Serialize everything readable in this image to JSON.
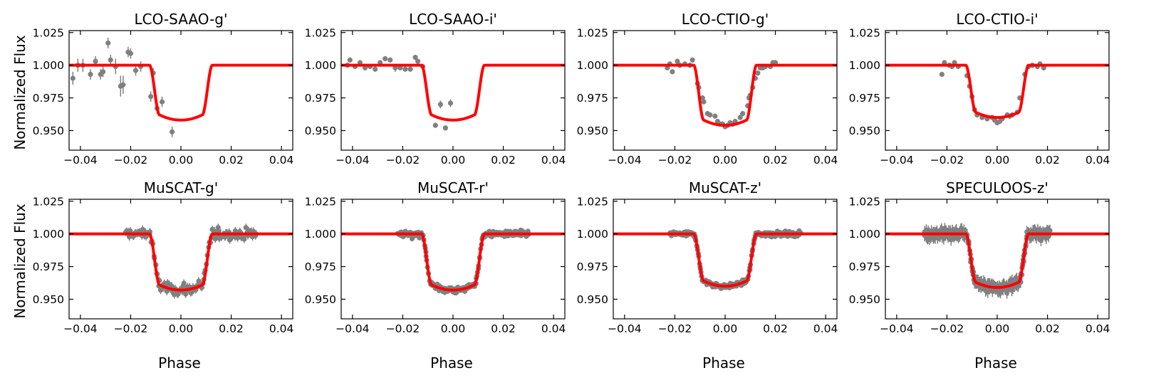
{
  "figure": {
    "xlabel": "Phase",
    "ylabel": "Normalized Flux",
    "x_ticks": [
      -0.04,
      -0.02,
      0.0,
      0.02,
      0.04
    ],
    "x_tick_labels": [
      "−0.04",
      "−0.02",
      "0.00",
      "0.02",
      "0.04"
    ],
    "y_ticks": [
      0.95,
      0.975,
      1.0,
      1.025
    ],
    "y_tick_labels": [
      "0.950",
      "0.975",
      "1.000",
      "1.025"
    ],
    "xlim": [
      -0.0445,
      0.0445
    ],
    "ylim": [
      0.935,
      1.0265
    ],
    "model_color": "#ff0000",
    "data_color": "#808080"
  },
  "chart_data": [
    {
      "type": "scatter",
      "title": "LCO-SAAO-g'",
      "model_depth": 0.958,
      "points": [
        [
          -0.043,
          0.99,
          0.005
        ],
        [
          -0.041,
          1.0,
          0.005
        ],
        [
          -0.039,
          1.0,
          0.005
        ],
        [
          -0.036,
          0.993,
          0.004
        ],
        [
          -0.034,
          1.003,
          0.004
        ],
        [
          -0.032,
          0.993,
          0.004
        ],
        [
          -0.031,
          0.995,
          0.004
        ],
        [
          -0.029,
          1.017,
          0.004
        ],
        [
          -0.028,
          1.004,
          0.004
        ],
        [
          -0.026,
          0.999,
          0.006
        ],
        [
          -0.024,
          0.984,
          0.008
        ],
        [
          -0.023,
          0.985,
          0.007
        ],
        [
          -0.021,
          1.01,
          0.004
        ],
        [
          -0.02,
          1.009,
          0.004
        ],
        [
          -0.018,
          0.996,
          0.004
        ],
        [
          -0.016,
          0.999,
          0.004
        ],
        [
          -0.012,
          0.976,
          0.004
        ],
        [
          -0.011,
          0.994,
          0.004
        ],
        [
          -0.0095,
          0.967,
          0.004
        ],
        [
          -0.0075,
          0.972,
          0.004
        ],
        [
          -0.0035,
          0.949,
          0.004
        ]
      ]
    },
    {
      "type": "scatter",
      "title": "LCO-SAAO-i'",
      "model_depth": 0.958,
      "points": [
        [
          -0.042,
          1.0,
          0.002
        ],
        [
          -0.041,
          1.004,
          0.002
        ],
        [
          -0.039,
          0.999,
          0.002
        ],
        [
          -0.037,
          1.002,
          0.002
        ],
        [
          -0.035,
          0.998,
          0.002
        ],
        [
          -0.033,
          0.999,
          0.002
        ],
        [
          -0.031,
          0.997,
          0.002
        ],
        [
          -0.029,
          1.002,
          0.002
        ],
        [
          -0.027,
          1.005,
          0.002
        ],
        [
          -0.025,
          1.004,
          0.002
        ],
        [
          -0.023,
          0.998,
          0.003
        ],
        [
          -0.021,
          0.998,
          0.002
        ],
        [
          -0.019,
          0.997,
          0.002
        ],
        [
          -0.017,
          0.997,
          0.002
        ],
        [
          -0.015,
          1.006,
          0.002
        ],
        [
          -0.014,
          1.003,
          0.002
        ],
        [
          -0.012,
          0.999,
          0.002
        ],
        [
          -0.007,
          0.954,
          0.002
        ],
        [
          -0.005,
          0.97,
          0.003
        ],
        [
          -0.003,
          0.952,
          0.002
        ],
        [
          -0.001,
          0.971,
          0.003
        ]
      ]
    },
    {
      "type": "scatter",
      "title": "LCO-CTIO-g'",
      "model_depth": 0.954,
      "points": [
        [
          -0.023,
          0.998,
          0.002
        ],
        [
          -0.022,
          1.001,
          0.002
        ],
        [
          -0.021,
          0.995,
          0.002
        ],
        [
          -0.019,
          1.003,
          0.002
        ],
        [
          -0.018,
          1.0,
          0.002
        ],
        [
          -0.016,
          1.001,
          0.002
        ],
        [
          -0.014,
          1.0,
          0.002
        ],
        [
          -0.013,
          1.004,
          0.002
        ],
        [
          -0.011,
          0.986,
          0.002
        ],
        [
          -0.0105,
          0.983,
          0.002
        ],
        [
          -0.009,
          0.975,
          0.002
        ],
        [
          -0.0085,
          0.972,
          0.002
        ],
        [
          -0.007,
          0.963,
          0.002
        ],
        [
          -0.006,
          0.962,
          0.002
        ],
        [
          -0.004,
          0.961,
          0.002
        ],
        [
          -0.003,
          0.957,
          0.002
        ],
        [
          -0.002,
          0.955,
          0.002
        ],
        [
          -0.001,
          0.955,
          0.002
        ],
        [
          0.0,
          0.953,
          0.002
        ],
        [
          0.001,
          0.954,
          0.002
        ],
        [
          0.002,
          0.956,
          0.002
        ],
        [
          0.003,
          0.955,
          0.002
        ],
        [
          0.004,
          0.957,
          0.002
        ],
        [
          0.006,
          0.96,
          0.002
        ],
        [
          0.007,
          0.963,
          0.002
        ],
        [
          0.009,
          0.969,
          0.002
        ],
        [
          0.0095,
          0.975,
          0.002
        ],
        [
          0.01,
          0.977,
          0.002
        ],
        [
          0.011,
          0.983,
          0.002
        ],
        [
          0.012,
          0.99,
          0.002
        ],
        [
          0.013,
          0.994,
          0.002
        ],
        [
          0.014,
          0.998,
          0.002
        ],
        [
          0.015,
          0.998,
          0.002
        ],
        [
          0.016,
          0.999,
          0.002
        ],
        [
          0.018,
          0.999,
          0.002
        ],
        [
          0.019,
          1.002,
          0.002
        ],
        [
          0.02,
          1.002,
          0.002
        ]
      ]
    },
    {
      "type": "scatter",
      "title": "LCO-CTIO-i'",
      "model_depth": 0.96,
      "points": [
        [
          -0.022,
          0.993,
          0.002
        ],
        [
          -0.021,
          1.002,
          0.002
        ],
        [
          -0.019,
          1.0,
          0.002
        ],
        [
          -0.018,
          0.999,
          0.002
        ],
        [
          -0.017,
          1.002,
          0.002
        ],
        [
          -0.0155,
          0.999,
          0.002
        ],
        [
          -0.012,
          0.992,
          0.002
        ],
        [
          -0.011,
          0.984,
          0.002
        ],
        [
          -0.01,
          0.976,
          0.002
        ],
        [
          -0.009,
          0.966,
          0.002
        ],
        [
          -0.008,
          0.962,
          0.002
        ],
        [
          -0.006,
          0.96,
          0.002
        ],
        [
          -0.004,
          0.959,
          0.002
        ],
        [
          -0.002,
          0.96,
          0.002
        ],
        [
          -0.001,
          0.958,
          0.002
        ],
        [
          0.0,
          0.956,
          0.002
        ],
        [
          0.001,
          0.957,
          0.002
        ],
        [
          0.002,
          0.959,
          0.002
        ],
        [
          0.004,
          0.962,
          0.002
        ],
        [
          0.005,
          0.961,
          0.002
        ],
        [
          0.006,
          0.962,
          0.002
        ],
        [
          0.008,
          0.964,
          0.002
        ],
        [
          0.009,
          0.975,
          0.002
        ],
        [
          0.011,
          0.993,
          0.002
        ],
        [
          0.0125,
          0.999,
          0.002
        ],
        [
          0.014,
          1.0,
          0.002
        ],
        [
          0.016,
          0.999,
          0.002
        ],
        [
          0.017,
          1.001,
          0.002
        ],
        [
          0.0185,
          0.998,
          0.002
        ]
      ]
    },
    {
      "type": "scatter",
      "title": "MuSCAT-g'",
      "model_depth": 0.957,
      "scatter": {
        "range": [
          -0.022,
          0.03
        ],
        "n": 140,
        "noise": 0.004,
        "err": 0.003
      },
      "points": []
    },
    {
      "type": "scatter",
      "title": "MuSCAT-r'",
      "model_depth": 0.957,
      "scatter": {
        "range": [
          -0.022,
          0.03
        ],
        "n": 220,
        "noise": 0.0022,
        "err": 0.002
      },
      "points": []
    },
    {
      "type": "scatter",
      "title": "MuSCAT-z'",
      "model_depth": 0.96,
      "scatter": {
        "range": [
          -0.022,
          0.03
        ],
        "n": 240,
        "noise": 0.0016,
        "err": 0.0015
      },
      "points": []
    },
    {
      "type": "scatter",
      "title": "SPECULOOS-z'",
      "model_depth": 0.959,
      "scatter": {
        "range": [
          -0.029,
          0.021
        ],
        "n": 320,
        "noise": 0.0035,
        "err": 0.0045
      },
      "points": []
    }
  ]
}
